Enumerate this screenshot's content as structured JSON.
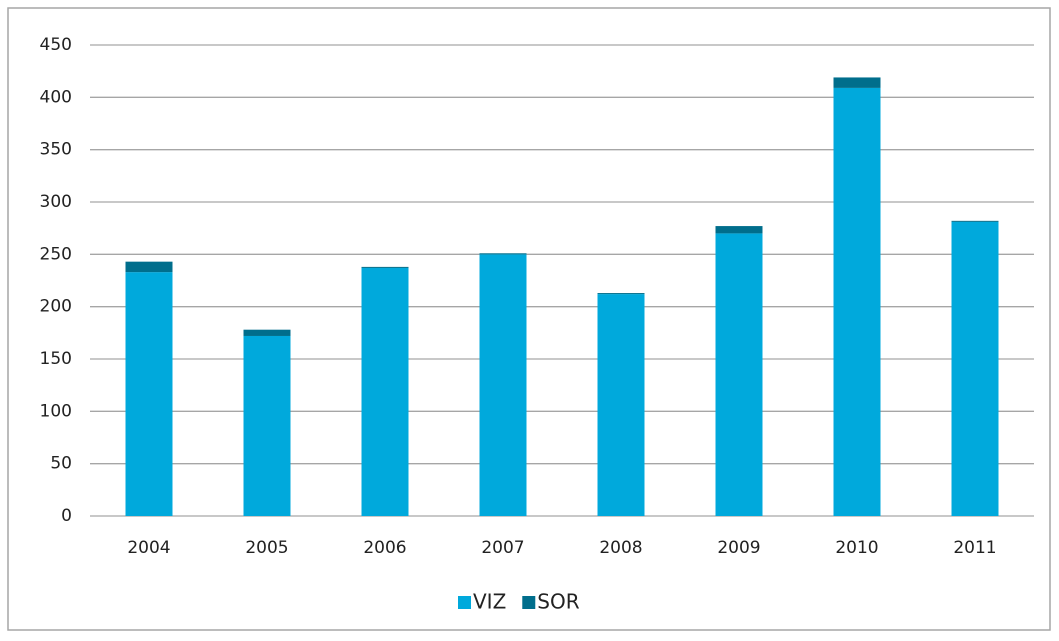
{
  "chart_data": {
    "type": "stacked_bar",
    "categories": [
      "2004",
      "2005",
      "2006",
      "2007",
      "2008",
      "2009",
      "2010",
      "2011"
    ],
    "series": [
      {
        "name": "VIZ",
        "color": "#00a9dc",
        "values": [
          233,
          172,
          237,
          250,
          212,
          270,
          409,
          281
        ]
      },
      {
        "name": "SOR",
        "color": "#006e8c",
        "values": [
          10,
          6,
          1,
          1,
          1,
          7,
          10,
          1
        ]
      }
    ],
    "ylim": [
      0,
      450
    ],
    "yticks": [
      0,
      50,
      100,
      150,
      200,
      250,
      300,
      350,
      400,
      450
    ],
    "grid": true,
    "legend": "bottom"
  }
}
